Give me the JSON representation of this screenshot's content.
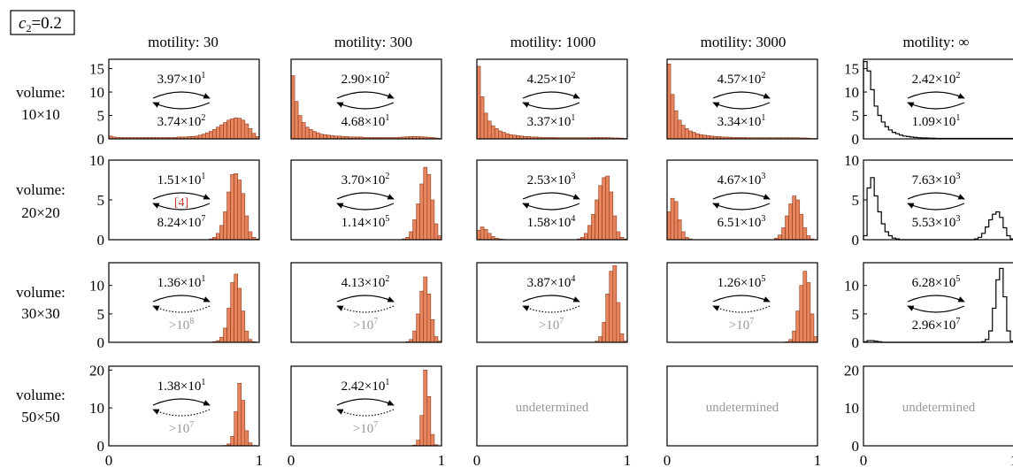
{
  "figure_label": {
    "base": "c",
    "sub": "2",
    "rest": "=0.2"
  },
  "columns": [
    "motility: 30",
    "motility: 300",
    "motility: 1000",
    "motility: 3000",
    "motility: ∞"
  ],
  "rows": [
    {
      "label_line1": "volume:",
      "label_line2": "10×10",
      "ylim": [
        0,
        17
      ],
      "yticks": [
        0,
        5,
        10,
        15
      ]
    },
    {
      "label_line1": "volume:",
      "label_line2": "20×20",
      "ylim": [
        0,
        10
      ],
      "yticks": [
        0,
        5,
        10
      ]
    },
    {
      "label_line1": "volume:",
      "label_line2": "30×30",
      "ylim": [
        0,
        14
      ],
      "yticks": [
        0,
        5,
        10
      ]
    },
    {
      "label_line1": "volume:",
      "label_line2": "50×50",
      "ylim": [
        0,
        21
      ],
      "yticks": [
        0,
        10,
        20
      ]
    }
  ],
  "x_ticks": [
    "0",
    "1"
  ],
  "undetermined_text": "undetermined",
  "reference_tag": "[4]",
  "colors": {
    "bar_fill": "#e8855e",
    "bar_stroke": "#8a3a1a",
    "step_line": "#000000",
    "gray_text": "#999999",
    "ref_red": "#c0392b"
  },
  "chart_data": [
    {
      "type": "bar",
      "row": 0,
      "col": 0,
      "upper": {
        "m": "3.97",
        "e": "1"
      },
      "lower": {
        "m": "3.74",
        "e": "2"
      },
      "lower_dotted": false,
      "values": [
        0.6,
        0.4,
        0.3,
        0.3,
        0.3,
        0.3,
        0.3,
        0.3,
        0.3,
        0.3,
        0.3,
        0.3,
        0.3,
        0.3,
        0.3,
        0.3,
        0.3,
        0.3,
        0.3,
        0.4,
        0.4,
        0.4,
        0.5,
        0.5,
        0.6,
        0.8,
        1.0,
        1.3,
        1.6,
        2.0,
        2.5,
        3.0,
        3.5,
        4.0,
        4.3,
        4.5,
        4.4,
        4.0,
        3.2,
        2.2,
        1.2,
        0.5
      ]
    },
    {
      "type": "bar",
      "row": 0,
      "col": 1,
      "upper": {
        "m": "2.90",
        "e": "2"
      },
      "lower": {
        "m": "4.68",
        "e": "1"
      },
      "lower_dotted": false,
      "values": [
        13.5,
        8.0,
        5.0,
        3.5,
        2.5,
        2.0,
        1.6,
        1.3,
        1.0,
        0.9,
        0.8,
        0.7,
        0.6,
        0.6,
        0.5,
        0.5,
        0.4,
        0.4,
        0.4,
        0.4,
        0.3,
        0.3,
        0.3,
        0.3,
        0.3,
        0.3,
        0.3,
        0.3,
        0.3,
        0.3,
        0.35,
        0.4,
        0.45,
        0.5,
        0.5,
        0.5,
        0.45,
        0.4,
        0.35,
        0.3,
        0.2,
        0.1
      ]
    },
    {
      "type": "bar",
      "row": 0,
      "col": 2,
      "upper": {
        "m": "4.25",
        "e": "2"
      },
      "lower": {
        "m": "3.37",
        "e": "1"
      },
      "lower_dotted": false,
      "values": [
        15.5,
        9.0,
        5.5,
        3.8,
        2.8,
        2.2,
        1.7,
        1.4,
        1.1,
        0.9,
        0.8,
        0.7,
        0.6,
        0.5,
        0.5,
        0.4,
        0.4,
        0.35,
        0.3,
        0.3,
        0.3,
        0.3,
        0.25,
        0.25,
        0.25,
        0.25,
        0.25,
        0.25,
        0.25,
        0.25,
        0.25,
        0.25,
        0.3,
        0.3,
        0.3,
        0.3,
        0.3,
        0.25,
        0.2,
        0.2,
        0.15,
        0.1
      ]
    },
    {
      "type": "bar",
      "row": 0,
      "col": 3,
      "upper": {
        "m": "4.57",
        "e": "2"
      },
      "lower": {
        "m": "3.34",
        "e": "1"
      },
      "lower_dotted": false,
      "values": [
        16.0,
        9.5,
        6.0,
        4.0,
        2.9,
        2.2,
        1.7,
        1.4,
        1.1,
        0.9,
        0.8,
        0.7,
        0.6,
        0.5,
        0.5,
        0.4,
        0.4,
        0.35,
        0.3,
        0.3,
        0.3,
        0.3,
        0.25,
        0.25,
        0.25,
        0.25,
        0.25,
        0.25,
        0.25,
        0.25,
        0.25,
        0.25,
        0.25,
        0.25,
        0.25,
        0.25,
        0.25,
        0.2,
        0.2,
        0.15,
        0.1,
        0.1
      ]
    },
    {
      "type": "area",
      "row": 0,
      "col": 4,
      "upper": {
        "m": "2.42",
        "e": "2"
      },
      "lower": {
        "m": "1.09",
        "e": "1"
      },
      "lower_dotted": false,
      "values": [
        16.5,
        14.5,
        10.5,
        7.0,
        5.0,
        3.6,
        2.6,
        1.9,
        1.4,
        1.1,
        0.8,
        0.6,
        0.5,
        0.4,
        0.3,
        0.25,
        0.2,
        0.2,
        0.15,
        0.15,
        0.1,
        0.1,
        0.1,
        0.1,
        0.1,
        0.1,
        0.1,
        0.1,
        0.1,
        0.1,
        0.1,
        0.1,
        0.1,
        0.1,
        0.1,
        0.1,
        0.1,
        0.1,
        0.1,
        0.1,
        0.1,
        0.1
      ]
    },
    {
      "type": "bar",
      "row": 1,
      "col": 0,
      "upper": {
        "m": "1.51",
        "e": "1"
      },
      "lower": {
        "m": "8.24",
        "e": "7"
      },
      "lower_dotted": false,
      "ref": true,
      "values": [
        0,
        0,
        0,
        0,
        0,
        0,
        0,
        0,
        0,
        0,
        0,
        0,
        0,
        0,
        0,
        0,
        0,
        0,
        0,
        0,
        0,
        0,
        0,
        0,
        0,
        0,
        0,
        0,
        0.1,
        0.3,
        0.8,
        1.8,
        3.5,
        6.0,
        8.2,
        8.3,
        7.5,
        5.8,
        3.0,
        1.0,
        0.3,
        0.1
      ]
    },
    {
      "type": "bar",
      "row": 1,
      "col": 1,
      "upper": {
        "m": "3.70",
        "e": "2"
      },
      "lower": {
        "m": "1.14",
        "e": "5"
      },
      "lower_dotted": false,
      "values": [
        0,
        0,
        0,
        0,
        0,
        0,
        0,
        0,
        0,
        0,
        0,
        0,
        0,
        0,
        0,
        0,
        0,
        0,
        0,
        0,
        0,
        0,
        0,
        0,
        0,
        0,
        0,
        0,
        0,
        0,
        0,
        0.1,
        0.3,
        1.0,
        2.5,
        4.5,
        7.0,
        9.1,
        8.2,
        5.0,
        2.0,
        0.5
      ]
    },
    {
      "type": "bar",
      "row": 1,
      "col": 2,
      "upper": {
        "m": "2.53",
        "e": "3"
      },
      "lower": {
        "m": "1.58",
        "e": "4"
      },
      "lower_dotted": false,
      "values": [
        1.2,
        1.6,
        1.3,
        0.8,
        0.4,
        0.2,
        0.1,
        0.05,
        0,
        0,
        0,
        0,
        0,
        0,
        0,
        0,
        0,
        0,
        0,
        0,
        0,
        0,
        0,
        0,
        0,
        0,
        0,
        0,
        0.1,
        0.3,
        0.8,
        1.8,
        3.2,
        5.0,
        6.8,
        7.8,
        8.0,
        6.0,
        3.0,
        1.0,
        0.3,
        0.1
      ]
    },
    {
      "type": "bar",
      "row": 1,
      "col": 3,
      "upper": {
        "m": "4.67",
        "e": "3"
      },
      "lower": {
        "m": "6.51",
        "e": "3"
      },
      "lower_dotted": false,
      "values": [
        3.5,
        5.2,
        4.8,
        2.5,
        1.0,
        0.3,
        0.1,
        0,
        0,
        0,
        0,
        0,
        0,
        0,
        0,
        0,
        0,
        0,
        0,
        0,
        0,
        0,
        0,
        0,
        0,
        0,
        0,
        0,
        0,
        0,
        0.2,
        0.6,
        1.5,
        3.0,
        4.5,
        5.5,
        5.0,
        3.2,
        1.5,
        0.5,
        0.1,
        0
      ]
    },
    {
      "type": "area",
      "row": 1,
      "col": 4,
      "upper": {
        "m": "7.63",
        "e": "3"
      },
      "lower": {
        "m": "5.53",
        "e": "3"
      },
      "lower_dotted": false,
      "values": [
        0.5,
        6.5,
        7.8,
        5.5,
        3.5,
        2.0,
        1.0,
        0.5,
        0.2,
        0.1,
        0,
        0,
        0,
        0,
        0,
        0,
        0,
        0,
        0,
        0,
        0,
        0,
        0,
        0,
        0,
        0,
        0,
        0,
        0,
        0,
        0,
        0.1,
        0.3,
        0.8,
        1.6,
        2.5,
        3.2,
        3.5,
        2.8,
        1.5,
        0.5,
        0.1
      ]
    },
    {
      "type": "bar",
      "row": 2,
      "col": 0,
      "upper": {
        "m": "1.36",
        "e": "1"
      },
      "lower_text": ">10",
      "lower_sup": "8",
      "lower_dotted": true,
      "values": [
        0,
        0,
        0,
        0,
        0,
        0,
        0,
        0,
        0,
        0,
        0,
        0,
        0,
        0,
        0,
        0,
        0,
        0,
        0,
        0,
        0,
        0,
        0,
        0,
        0,
        0,
        0,
        0,
        0,
        0.1,
        0.3,
        0.9,
        2.5,
        6.0,
        10.5,
        12.0,
        9.5,
        5.5,
        2.0,
        0.5,
        0.1,
        0
      ]
    },
    {
      "type": "bar",
      "row": 2,
      "col": 1,
      "upper": {
        "m": "4.13",
        "e": "2"
      },
      "lower_text": ">10",
      "lower_sup": "7",
      "lower_dotted": true,
      "values": [
        0,
        0,
        0,
        0,
        0,
        0,
        0,
        0,
        0,
        0,
        0,
        0,
        0,
        0,
        0,
        0,
        0,
        0,
        0,
        0,
        0,
        0,
        0,
        0,
        0,
        0,
        0,
        0,
        0,
        0,
        0,
        0,
        0.1,
        0.5,
        2.0,
        5.0,
        9.0,
        11.5,
        8.5,
        4.0,
        1.0,
        0.2
      ]
    },
    {
      "type": "bar",
      "row": 2,
      "col": 2,
      "upper": {
        "m": "3.87",
        "e": "4"
      },
      "lower_text": ">10",
      "lower_sup": "7",
      "lower_dotted": true,
      "values": [
        0,
        0,
        0,
        0,
        0,
        0,
        0,
        0,
        0,
        0,
        0,
        0,
        0,
        0,
        0,
        0,
        0,
        0,
        0,
        0,
        0,
        0,
        0,
        0,
        0,
        0,
        0,
        0,
        0,
        0,
        0,
        0,
        0,
        0.2,
        1.0,
        3.5,
        8.5,
        12.5,
        13.5,
        7.0,
        1.5,
        0.2
      ]
    },
    {
      "type": "bar",
      "row": 2,
      "col": 3,
      "upper": {
        "m": "1.26",
        "e": "5"
      },
      "lower_text": ">10",
      "lower_sup": "7",
      "lower_dotted": true,
      "values": [
        0,
        0,
        0,
        0,
        0,
        0,
        0,
        0,
        0,
        0,
        0,
        0,
        0,
        0,
        0,
        0,
        0,
        0,
        0,
        0,
        0,
        0,
        0,
        0,
        0,
        0,
        0,
        0,
        0,
        0,
        0,
        0,
        0,
        0.1,
        0.5,
        2.0,
        5.5,
        10.0,
        12.5,
        10.5,
        5.0,
        1.0
      ]
    },
    {
      "type": "area",
      "row": 2,
      "col": 4,
      "upper": {
        "m": "6.28",
        "e": "5"
      },
      "lower": {
        "m": "2.96",
        "e": "7"
      },
      "lower_dotted": false,
      "values": [
        0.1,
        0.3,
        0.3,
        0.2,
        0.1,
        0,
        0,
        0,
        0,
        0,
        0,
        0,
        0,
        0,
        0,
        0,
        0,
        0,
        0,
        0,
        0,
        0,
        0,
        0,
        0,
        0,
        0,
        0,
        0,
        0,
        0,
        0,
        0,
        0.1,
        0.5,
        2.0,
        6.0,
        11.0,
        13.0,
        8.0,
        2.0,
        0.2
      ]
    },
    {
      "type": "bar",
      "row": 3,
      "col": 0,
      "upper": {
        "m": "1.38",
        "e": "1"
      },
      "lower_text": ">10",
      "lower_sup": "7",
      "lower_dotted": true,
      "values": [
        0,
        0,
        0,
        0,
        0,
        0,
        0,
        0,
        0,
        0,
        0,
        0,
        0,
        0,
        0,
        0,
        0,
        0,
        0,
        0,
        0,
        0,
        0,
        0,
        0,
        0,
        0,
        0,
        0,
        0,
        0,
        0,
        0.1,
        0.5,
        2.5,
        9.0,
        16.5,
        12.0,
        4.0,
        0.8,
        0.1,
        0
      ]
    },
    {
      "type": "bar",
      "row": 3,
      "col": 1,
      "upper": {
        "m": "2.42",
        "e": "1"
      },
      "lower_text": ">10",
      "lower_sup": "7",
      "lower_dotted": true,
      "values": [
        0,
        0,
        0,
        0,
        0,
        0,
        0,
        0,
        0,
        0,
        0,
        0,
        0,
        0,
        0,
        0,
        0,
        0,
        0,
        0,
        0,
        0,
        0,
        0,
        0,
        0,
        0,
        0,
        0,
        0,
        0,
        0,
        0,
        0,
        0.2,
        1.5,
        8.0,
        20.0,
        13.0,
        3.0,
        0.3,
        0
      ]
    },
    {
      "type": "empty",
      "row": 3,
      "col": 2
    },
    {
      "type": "empty",
      "row": 3,
      "col": 3
    },
    {
      "type": "empty",
      "row": 3,
      "col": 4
    }
  ]
}
